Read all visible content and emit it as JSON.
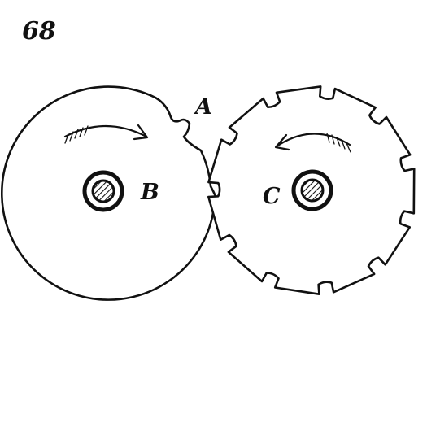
{
  "figure": {
    "number": "68"
  },
  "labels": {
    "point_a": "A",
    "wheel_b": "B",
    "wheel_c": "C"
  },
  "wheels": [
    {
      "id": "B",
      "type": "smooth-disc-with-single-notch",
      "rotation_arrow": "clockwise"
    },
    {
      "id": "C",
      "type": "notched-wheel",
      "notches": 11,
      "rotation_arrow": "counterclockwise"
    }
  ],
  "colors": {
    "ink": "#111111",
    "paper": "#ffffff"
  }
}
